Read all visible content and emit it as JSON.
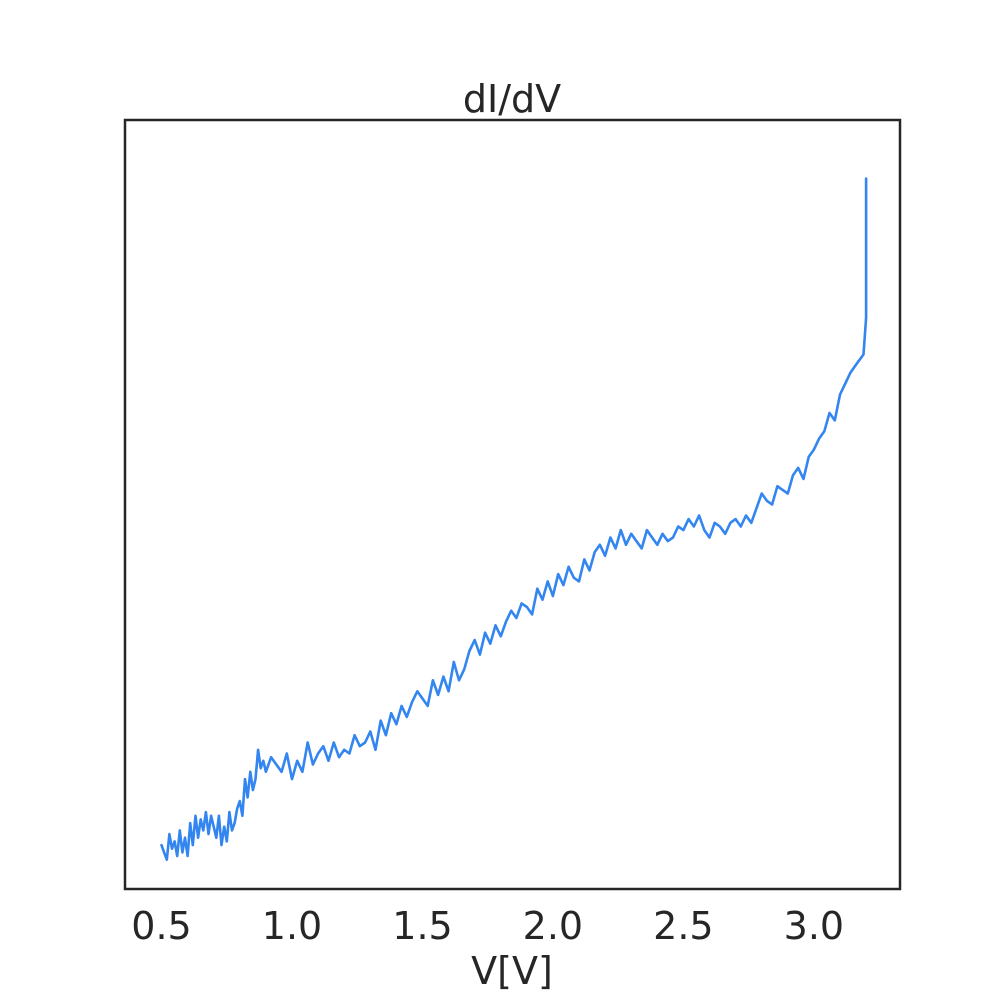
{
  "chart_data": {
    "type": "line",
    "title": "dI/dV",
    "xlabel": "V[V]",
    "ylabel": "",
    "xlim": [
      0.36,
      3.33
    ],
    "ylim": [
      0.0,
      1.05
    ],
    "y_ticks_shown": false,
    "grid": false,
    "x_ticks": [
      "0.5",
      "1.0",
      "1.5",
      "2.0",
      "2.5",
      "3.0"
    ],
    "line_color": "#3385f0",
    "frame_color": "#262626",
    "series": [
      {
        "x": [
          0.5,
          0.51,
          0.52,
          0.53,
          0.54,
          0.55,
          0.56,
          0.57,
          0.58,
          0.59,
          0.6,
          0.61,
          0.62,
          0.63,
          0.64,
          0.65,
          0.66,
          0.67,
          0.68,
          0.69,
          0.7,
          0.71,
          0.72,
          0.73,
          0.74,
          0.75,
          0.76,
          0.77,
          0.78,
          0.79,
          0.8,
          0.81,
          0.82,
          0.83,
          0.84,
          0.85,
          0.86,
          0.87,
          0.88,
          0.89,
          0.9,
          0.92,
          0.94,
          0.96,
          0.98,
          1.0,
          1.02,
          1.04,
          1.06,
          1.08,
          1.1,
          1.12,
          1.14,
          1.16,
          1.18,
          1.2,
          1.22,
          1.24,
          1.26,
          1.28,
          1.3,
          1.32,
          1.34,
          1.36,
          1.38,
          1.4,
          1.42,
          1.44,
          1.46,
          1.48,
          1.5,
          1.52,
          1.54,
          1.56,
          1.58,
          1.6,
          1.62,
          1.64,
          1.66,
          1.68,
          1.7,
          1.72,
          1.74,
          1.76,
          1.78,
          1.8,
          1.82,
          1.84,
          1.86,
          1.88,
          1.9,
          1.92,
          1.94,
          1.96,
          1.98,
          2.0,
          2.02,
          2.04,
          2.06,
          2.08,
          2.1,
          2.12,
          2.14,
          2.16,
          2.18,
          2.2,
          2.22,
          2.24,
          2.26,
          2.28,
          2.3,
          2.32,
          2.34,
          2.36,
          2.38,
          2.4,
          2.42,
          2.44,
          2.46,
          2.48,
          2.5,
          2.52,
          2.54,
          2.56,
          2.58,
          2.6,
          2.62,
          2.64,
          2.66,
          2.68,
          2.7,
          2.72,
          2.74,
          2.76,
          2.78,
          2.8,
          2.82,
          2.84,
          2.86,
          2.88,
          2.9,
          2.92,
          2.94,
          2.96,
          2.98,
          3.0,
          3.02,
          3.04,
          3.06,
          3.08,
          3.1,
          3.12,
          3.14,
          3.16,
          3.18,
          3.19,
          3.2,
          3.2
        ],
        "y": [
          0.06,
          0.05,
          0.04,
          0.075,
          0.055,
          0.065,
          0.045,
          0.08,
          0.05,
          0.07,
          0.045,
          0.09,
          0.06,
          0.1,
          0.07,
          0.095,
          0.08,
          0.105,
          0.075,
          0.1,
          0.085,
          0.07,
          0.1,
          0.06,
          0.085,
          0.065,
          0.105,
          0.08,
          0.09,
          0.11,
          0.12,
          0.1,
          0.15,
          0.125,
          0.16,
          0.135,
          0.15,
          0.19,
          0.165,
          0.175,
          0.16,
          0.18,
          0.17,
          0.16,
          0.185,
          0.15,
          0.175,
          0.16,
          0.2,
          0.17,
          0.185,
          0.195,
          0.175,
          0.2,
          0.18,
          0.19,
          0.185,
          0.21,
          0.195,
          0.2,
          0.215,
          0.19,
          0.23,
          0.21,
          0.24,
          0.225,
          0.25,
          0.235,
          0.255,
          0.27,
          0.26,
          0.25,
          0.285,
          0.265,
          0.29,
          0.27,
          0.31,
          0.285,
          0.3,
          0.325,
          0.34,
          0.32,
          0.35,
          0.335,
          0.36,
          0.345,
          0.365,
          0.38,
          0.37,
          0.39,
          0.385,
          0.375,
          0.41,
          0.395,
          0.42,
          0.4,
          0.43,
          0.415,
          0.44,
          0.425,
          0.42,
          0.45,
          0.435,
          0.46,
          0.47,
          0.455,
          0.48,
          0.465,
          0.49,
          0.47,
          0.485,
          0.475,
          0.465,
          0.49,
          0.48,
          0.47,
          0.485,
          0.475,
          0.48,
          0.495,
          0.49,
          0.505,
          0.495,
          0.51,
          0.49,
          0.48,
          0.5,
          0.495,
          0.485,
          0.5,
          0.505,
          0.495,
          0.51,
          0.5,
          0.52,
          0.54,
          0.53,
          0.525,
          0.55,
          0.545,
          0.54,
          0.565,
          0.575,
          0.56,
          0.59,
          0.6,
          0.615,
          0.625,
          0.65,
          0.64,
          0.675,
          0.69,
          0.705,
          0.715,
          0.725,
          0.73,
          0.78,
          0.97
        ]
      }
    ]
  }
}
